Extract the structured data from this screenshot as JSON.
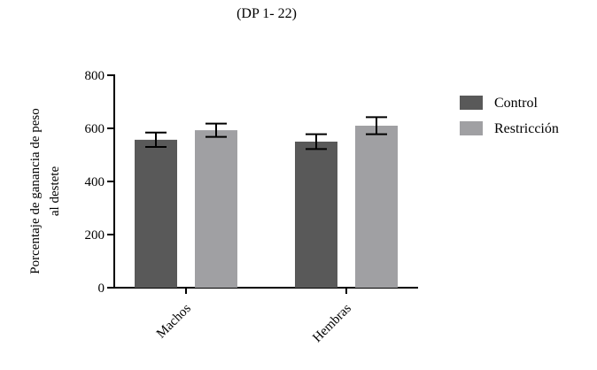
{
  "chart_data": {
    "type": "bar",
    "title": "(DP 1- 22)",
    "ylabel_lines": [
      "Porcentaje de  ganancia de peso",
      "al destete"
    ],
    "xlabel": "",
    "categories": [
      "Machos",
      "Hembras"
    ],
    "series": [
      {
        "name": "Control",
        "color": "#595959",
        "values": [
          557,
          550
        ],
        "error": [
          27,
          28
        ]
      },
      {
        "name": "Restricción",
        "color": "#a0a0a3",
        "values": [
          593,
          610
        ],
        "error": [
          25,
          32
        ]
      }
    ],
    "ylim": [
      0,
      800
    ],
    "yticks": [
      0,
      200,
      400,
      600,
      800
    ],
    "grid": false,
    "legend_position": "right"
  }
}
